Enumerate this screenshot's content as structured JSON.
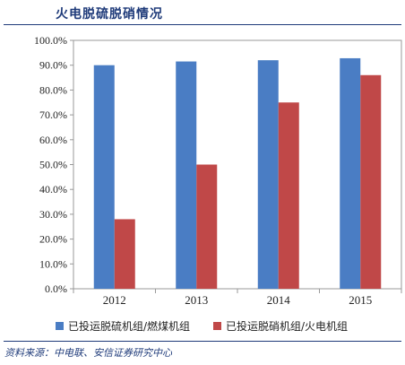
{
  "header": {
    "title": "火电脱硫脱硝情况"
  },
  "source": {
    "text": "资料来源：中电联、安信证券研究中心"
  },
  "chart_data": {
    "type": "bar",
    "categories": [
      "2012",
      "2013",
      "2014",
      "2015"
    ],
    "series": [
      {
        "name": "已投运脱硫机组/燃煤机组",
        "color": "#4a7dc4",
        "values": [
          90.0,
          91.5,
          92.0,
          92.8
        ]
      },
      {
        "name": "已投运脱硝机组/火电机组",
        "color": "#c04848",
        "values": [
          28.0,
          50.0,
          75.0,
          86.0
        ]
      }
    ],
    "ylim": [
      0,
      100
    ],
    "yticks": [
      0,
      10,
      20,
      30,
      40,
      50,
      60,
      70,
      80,
      90,
      100
    ],
    "ytick_labels": [
      "0.0%",
      "10.0%",
      "20.0%",
      "30.0%",
      "40.0%",
      "50.0%",
      "60.0%",
      "70.0%",
      "80.0%",
      "90.0%",
      "100.0%"
    ],
    "grid": false,
    "legend_position": "bottom"
  }
}
